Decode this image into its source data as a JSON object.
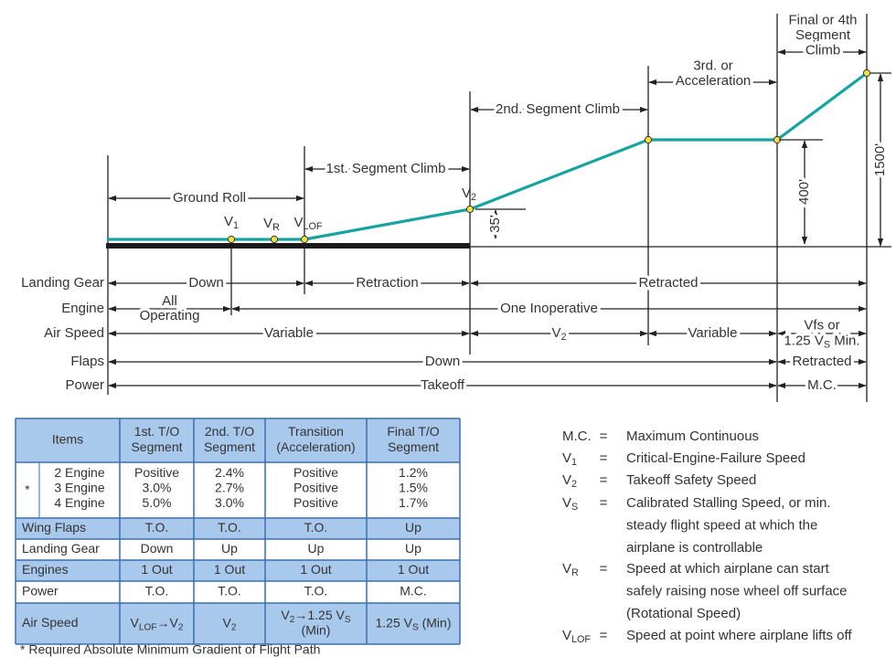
{
  "diagram": {
    "segments": [
      "Ground Roll",
      "1st. Segment Climb",
      "2nd. Segment Climb",
      {
        "lines": [
          "3rd. or",
          "Acceleration"
        ]
      },
      {
        "lines": [
          "Final or 4th",
          "Segment",
          "Climb"
        ]
      }
    ],
    "points": [
      [
        {
          "base": "V",
          "sub": "1"
        }
      ],
      [
        {
          "base": "V",
          "sub": "R"
        }
      ],
      [
        {
          "base": "V",
          "sub": "LOF"
        }
      ],
      [
        {
          "base": "V",
          "sub": "2"
        }
      ]
    ],
    "dimensions": [
      "35'",
      "400'",
      "1500'"
    ],
    "rows": [
      {
        "label": "Landing Gear",
        "spans": [
          "Down",
          "Retraction",
          "Retracted"
        ]
      },
      {
        "label": "Engine",
        "spans": [
          {
            "lines": [
              "All",
              "Operating"
            ]
          },
          "One Inoperative"
        ]
      },
      {
        "label": "Air Speed",
        "spans": [
          "Variable",
          [
            {
              "base": "V",
              "sub": "2"
            }
          ],
          "Variable",
          {
            "lines": [
              "Vfs or",
              [
                "1.25 ",
                {
                  "base": "V",
                  "sub": "S"
                },
                " Min."
              ]
            ]
          }
        ]
      },
      {
        "label": "Flaps",
        "spans": [
          "Down",
          "Retracted"
        ]
      },
      {
        "label": "Power",
        "spans": [
          "Takeoff",
          "M.C."
        ]
      }
    ]
  },
  "table": {
    "header": [
      "Items",
      {
        "lines": [
          "1st. T/O",
          "Segment"
        ]
      },
      {
        "lines": [
          "2nd. T/O",
          "Segment"
        ]
      },
      {
        "lines": [
          "Transition",
          "(Acceleration)"
        ]
      },
      {
        "lines": [
          "Final T/O",
          "Segment"
        ]
      }
    ],
    "gradient_row": {
      "marker": "*",
      "cells": [
        {
          "lines": [
            "2 Engine",
            "3 Engine",
            "4 Engine"
          ]
        },
        {
          "lines": [
            "Positive",
            "3.0%",
            "5.0%"
          ]
        },
        {
          "lines": [
            "2.4%",
            "2.7%",
            "3.0%"
          ]
        },
        {
          "lines": [
            "Positive",
            "Positive",
            "Positive"
          ]
        },
        {
          "lines": [
            "1.2%",
            "1.5%",
            "1.7%"
          ]
        }
      ]
    },
    "rows": [
      [
        "Wing Flaps",
        "T.O.",
        "T.O.",
        "T.O.",
        "Up"
      ],
      [
        "Landing Gear",
        "Down",
        "Up",
        "Up",
        "Up"
      ],
      [
        "Engines",
        "1 Out",
        "1 Out",
        "1 Out",
        "1 Out"
      ],
      [
        "Power",
        "T.O.",
        "T.O.",
        "T.O.",
        "M.C."
      ],
      [
        "Air Speed",
        [
          {
            "base": "V",
            "sub": "LOF"
          },
          "→",
          {
            "base": "V",
            "sub": "2"
          }
        ],
        [
          {
            "base": "V",
            "sub": "2"
          }
        ],
        {
          "lines": [
            [
              {
                "base": "V",
                "sub": "2"
              },
              "→1.25 ",
              {
                "base": "V",
                "sub": "S"
              }
            ],
            "(Min)"
          ]
        },
        [
          "1.25 ",
          {
            "base": "V",
            "sub": "S"
          },
          " (Min)"
        ]
      ]
    ],
    "footnote": "* Required Absolute Minimum Gradient of Flight Path"
  },
  "legend": {
    "equals": "=",
    "entries": [
      {
        "symbol": "M.C.",
        "definition": "Maximum Continuous"
      },
      {
        "symbol": [
          {
            "base": "V",
            "sub": "1"
          }
        ],
        "definition": "Critical-Engine-Failure Speed"
      },
      {
        "symbol": [
          {
            "base": "V",
            "sub": "2"
          }
        ],
        "definition": "Takeoff Safety Speed"
      },
      {
        "symbol": [
          {
            "base": "V",
            "sub": "S"
          }
        ],
        "definition": {
          "lines": [
            "Calibrated Stalling Speed, or min.",
            "steady flight speed at which the",
            "airplane is controllable"
          ]
        }
      },
      {
        "symbol": [
          {
            "base": "V",
            "sub": "R"
          }
        ],
        "definition": {
          "lines": [
            "Speed at which airplane can start",
            "safely raising nose wheel off surface",
            "(Rotational Speed)"
          ]
        }
      },
      {
        "symbol": [
          {
            "base": "V",
            "sub": "LOF"
          }
        ],
        "definition": "Speed at point where airplane lifts off"
      }
    ]
  }
}
